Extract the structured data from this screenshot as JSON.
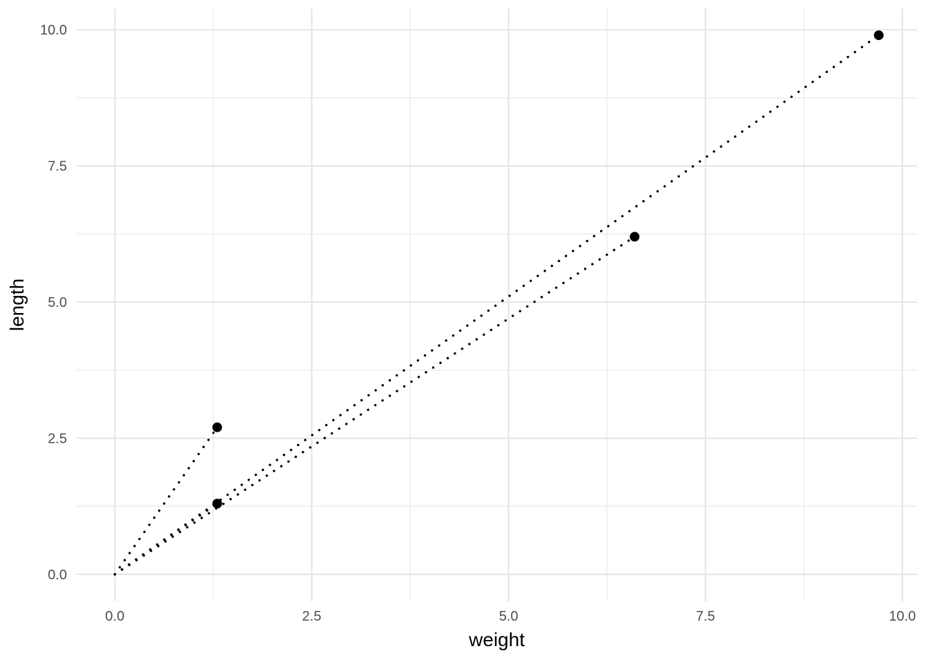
{
  "chart_data": {
    "type": "scatter",
    "title": "",
    "xlabel": "weight",
    "ylabel": "length",
    "background_color": "#FFFFFF",
    "x_axis": {
      "ticks": [
        {
          "value": 0.0,
          "label": "0.0"
        },
        {
          "value": 2.5,
          "label": "2.5"
        },
        {
          "value": 5.0,
          "label": "5.0"
        },
        {
          "value": 7.5,
          "label": "7.5"
        },
        {
          "value": 10.0,
          "label": "10.0"
        }
      ],
      "minor_ticks": [
        1.25,
        3.75,
        6.25,
        8.75
      ],
      "lim": [
        -0.485,
        10.185
      ]
    },
    "y_axis": {
      "ticks": [
        {
          "value": 0.0,
          "label": "0.0"
        },
        {
          "value": 2.5,
          "label": "2.5"
        },
        {
          "value": 5.0,
          "label": "5.0"
        },
        {
          "value": 7.5,
          "label": "7.5"
        },
        {
          "value": 10.0,
          "label": "10.0"
        }
      ],
      "minor_ticks": [
        1.25,
        3.75,
        6.25,
        8.75
      ],
      "lim": [
        -0.495,
        10.395
      ]
    },
    "points": [
      {
        "weight": 1.3,
        "length": 2.7
      },
      {
        "weight": 1.3,
        "length": 1.3
      },
      {
        "weight": 6.6,
        "length": 6.2
      },
      {
        "weight": 9.7,
        "length": 9.9
      }
    ],
    "segments": {
      "origin": {
        "x": 0,
        "y": 0
      },
      "style": "dotted",
      "color": "#000000",
      "note": "dotted segment from origin to every point"
    },
    "point_style": {
      "color": "#000000",
      "radius": 7
    },
    "grid": {
      "show": true,
      "major_color": "#E6E6E6",
      "minor_color": "#EFEFEF"
    },
    "legend": {
      "show": false
    },
    "text_colors": {
      "tick": "#4D4D4D",
      "axis_title": "#000000"
    }
  }
}
